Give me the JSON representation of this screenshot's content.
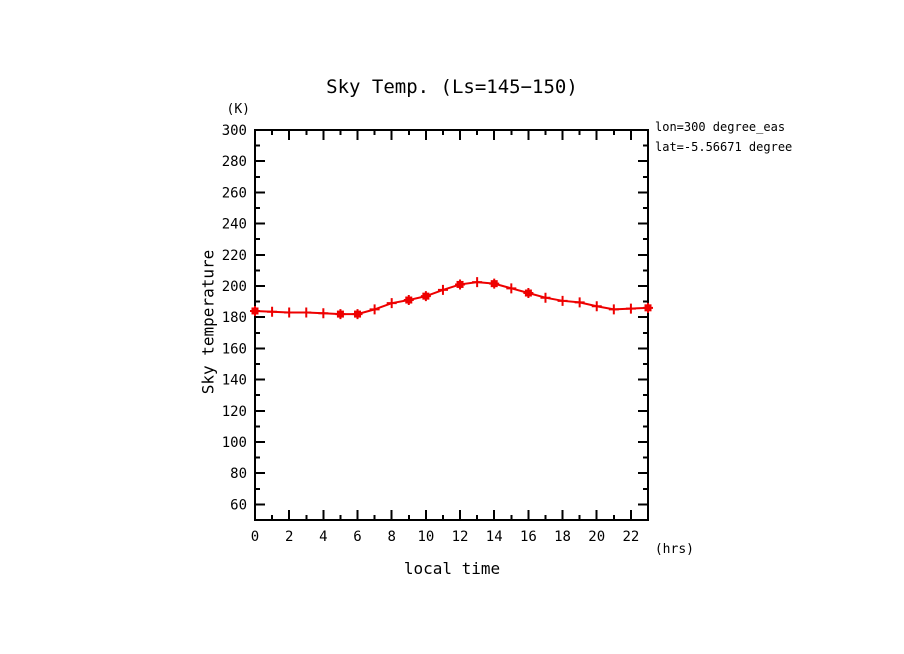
{
  "page": {
    "background": "#ffffff"
  },
  "chart_data": {
    "type": "line",
    "title": "Sky Temp. (Ls=145−150)",
    "xlabel": "local time",
    "ylabel": "Sky temperature",
    "x_unit_label": "(hrs)",
    "y_unit_label": "(K)",
    "xlim": [
      0,
      23
    ],
    "ylim": [
      50,
      300
    ],
    "xticks_major": [
      0,
      2,
      4,
      6,
      8,
      10,
      12,
      14,
      16,
      18,
      20,
      22
    ],
    "xticks_minor": [
      1,
      3,
      5,
      7,
      9,
      11,
      13,
      15,
      17,
      19,
      21,
      23
    ],
    "yticks_major": [
      60,
      80,
      100,
      120,
      140,
      160,
      180,
      200,
      220,
      240,
      260,
      280,
      300
    ],
    "yticks_minor": [
      70,
      90,
      110,
      130,
      150,
      170,
      190,
      210,
      230,
      250,
      270,
      290
    ],
    "grid": false,
    "legend_position": "none",
    "axis_color": "#000000",
    "series": [
      {
        "name": "sky-temperature",
        "color": "#ee0000",
        "marker": "plus",
        "x": [
          0,
          1,
          2,
          3,
          4,
          5,
          6,
          7,
          8,
          9,
          10,
          11,
          12,
          13,
          14,
          15,
          16,
          17,
          18,
          19,
          20,
          21,
          22,
          23
        ],
        "y": [
          184,
          183.5,
          183,
          183,
          182.5,
          182,
          182,
          185,
          189,
          191,
          193.5,
          197.5,
          201,
          202.5,
          201.5,
          198.5,
          195.5,
          192.5,
          190.5,
          189.5,
          187,
          185,
          185.5,
          186
        ],
        "square_marker_x": [
          0,
          5,
          6,
          9,
          10,
          12,
          14,
          16,
          23
        ]
      }
    ],
    "annotations": [
      "lon=300 degree_eas",
      "lat=-5.56671 degree"
    ]
  }
}
